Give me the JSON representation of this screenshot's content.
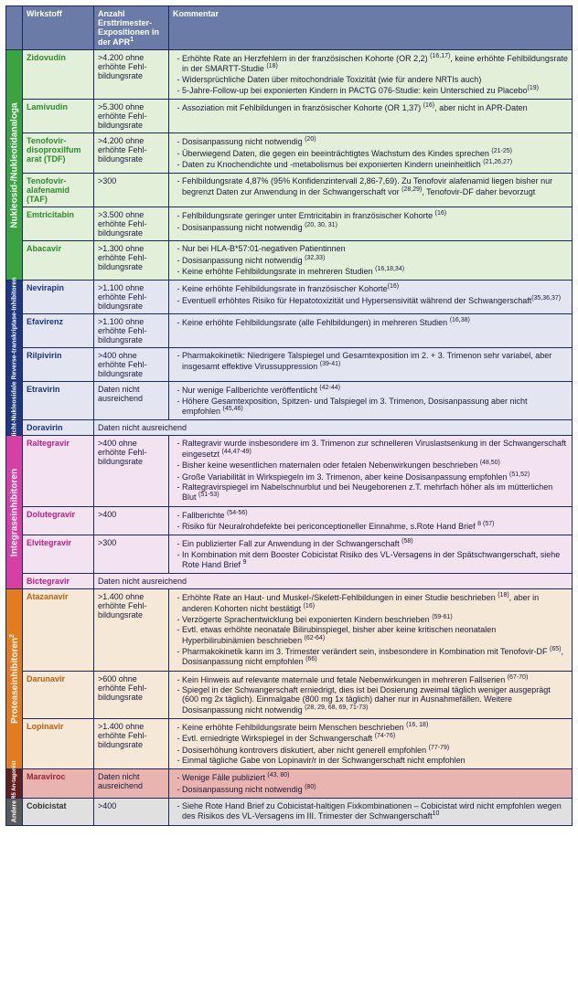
{
  "header": {
    "wirkstoff": "Wirkstoff",
    "anzahl": "Anzahl Ersttrimester-Expositionen in der APR",
    "anzahl_sup": "1",
    "kommentar": "Kommentar"
  },
  "groups": {
    "nrti": {
      "label": "Nukleosid-/Nukleotidanaloga",
      "bg": "#3aa440",
      "rowbg": "#e3f0d9",
      "wirkcolor": "#2e8b2e"
    },
    "nnrti": {
      "label": "Nicht-Nukleosidale Reverse-transkriptase-Inhibitoren",
      "bg": "#1f3680",
      "rowbg": "#e3e6f0",
      "wirkcolor": "#1f3680"
    },
    "int": {
      "label": "Integraseinhibitoren",
      "bg": "#d63fa3",
      "rowbg": "#f3e2ef",
      "wirkcolor": "#c21d84"
    },
    "prot": {
      "label": "Proteaseinhibitoren",
      "prot_sup": "2",
      "bg": "#e57b1f",
      "rowbg": "#f5e8d6",
      "wirkcolor": "#c05f0a"
    },
    "ccr5": {
      "label": "CCR5 An-tagonist",
      "bg": "#602020",
      "rowbg": "#e9b4b0",
      "wirkcolor": "#a02030"
    },
    "andere": {
      "label": "Andere",
      "bg": "#5a5a5a",
      "rowbg": "#e0e0e0",
      "wirkcolor": "#333"
    }
  },
  "rows": {
    "zidovudin": {
      "wirk": "Zidovudin",
      "anz": ">4.200 ohne erhöhte Fehl­bildungsrate",
      "items": [
        "Erhöhte Rate an Herzfehlern in der französischen Kohorte (OR 2,2) <sup>(16,17)</sup>, keine erhöhte Fehlbildungsrate in der SMARTT-Studie <sup>(18)</sup>",
        "Widersprüchliche Daten über mitochondriale Toxizität (wie für andere NRTIs auch)",
        "5-Jahre-Follow-up bei exponierten Kindern in PACTG 076-Studie: kein Unter­schied zu Placebo<sup>(19)</sup>"
      ]
    },
    "lamivudin": {
      "wirk": "Lamivudin",
      "anz": ">5.300 ohne erhöhte Fehl­bildungsrate",
      "items": [
        "Assoziation mit Fehlbildungen in französischer Kohorte (OR 1,37) <sup>(16)</sup>, aber nicht in APR-Daten"
      ]
    },
    "tdf": {
      "wirk": "Tenofovir-disoproxilfum arat (TDF)",
      "anz": ">4.200 ohne erhöhte Fehl­bildungsrate",
      "items": [
        "Dosisanpassung nicht notwendig <sup>(20)</sup>",
        "Überwiegend Daten, die gegen ein beeinträchtigtes Wachstum des Kindes sprechen <sup>(21-25)</sup>",
        "Daten zu Knochendichte und -metabolismus bei exponierten Kindern uneinheitlich <sup>(21,26,27)</sup>"
      ]
    },
    "taf": {
      "wirk": "Tenofovir-alafenamid (TAF)",
      "anz": ">300",
      "items": [
        "Fehlbildungsrate 4,87% (95% Konfidenzintervall 2,86-7,69). Zu Tenofovir alafenamid liegen bisher nur begrenzt Daten zur Anwendung in der Schwan­gerschaft vor <sup>(28,29)</sup>, Tenofovir-DF daher bevorzugt"
      ]
    },
    "emtri": {
      "wirk": "Emtricitabin",
      "anz": ">3.500 ohne erhöhte Fehl­bildungsrate",
      "items": [
        "Fehlbildungsrate geringer unter Emtricitabin in französischer Kohorte <sup>(16)</sup>",
        "Dosisanpassung nicht notwendig <sup>(20, 30, 31)</sup>"
      ]
    },
    "abacavir": {
      "wirk": "Abacavir",
      "anz": ">1.300 ohne erhöhte Fehl­bildungsrate",
      "items": [
        "Nur bei HLA-B*57:01-negativen Patientinnen",
        "Dosisanpassung nicht notwendig <sup>(32,33)</sup>",
        "Keine erhöhte Fehlbildungsrate in mehreren Studien <sup>(16,18,34)</sup>"
      ]
    },
    "nevirapin": {
      "wirk": "Nevirapin",
      "anz": ">1.100 ohne erhöhte Fehl­bildungsrate",
      "items": [
        "Keine erhöhte Fehlbildungsrate in französischer Kohorte<sup>(16)</sup>",
        "Eventuell erhöhtes Risiko für Hepatotoxizität und Hypersensivität während der Schwangerschaft<sup>(35,36,37)</sup>"
      ]
    },
    "efavirenz": {
      "wirk": "Efavirenz",
      "anz": ">1.100 ohne erhöhte Fehl­bildungsrate",
      "items": [
        "Keine erhöhte Fehlbildungsrate (alle Fehlbildungen) in mehreren Studien <sup>(16,38)</sup>"
      ]
    },
    "rilpivirin": {
      "wirk": "Rilpivirin",
      "anz": ">400 ohne erhöhte Fehl­bildungsrate",
      "items": [
        "Pharmakokinetik: Niedrigere Talspiegel und Gesamtexposition im 2. + 3. Trimenon sehr variabel, aber insgesamt effektive Virussuppression <sup>(39-41)</sup>"
      ]
    },
    "etravirin": {
      "wirk": "Etravirin",
      "anz": "Daten nicht ausreichend",
      "items": [
        "Nur wenige Fallberichte veröffentlicht <sup>(42-44)</sup>",
        "Höhere Gesamtexposition, Spitzen- und Talspiegel im 3. Trimenon, Dosis­anpassung aber nicht empfohlen <sup>(45,46)</sup>"
      ]
    },
    "doravirin": {
      "wirk": "Doravirin",
      "span_text": "Daten nicht ausreichend"
    },
    "raltegravir": {
      "wirk": "Raltegravir",
      "anz": ">400 ohne erhöhte Fehl­bildungsrate",
      "items": [
        "Raltegravir wurde insbesondere im 3. Trimenon zur schnelleren Viruslastsen­kung in der Schwangerschaft eingesetzt <sup>(44,47-49)</sup>",
        "Bisher keine wesentlichen maternalen oder fetalen Nebenwirkungen beschrieben <sup>(48,50)</sup>",
        "Große Variabilität in Wirkspiegeln im 3. Trimenon, aber keine Dosisanpas­sung empfohlen <sup>(51,52)</sup>",
        "Raltegravirspiegel im Nabelschnurblut und bei Neugeborenen z.T. mehrfach höher als im mütterlichen Blut <sup>(51-53)</sup>"
      ]
    },
    "dolutegravir": {
      "wirk": "Dolutegravir",
      "anz": ">400",
      "items": [
        "Fallberichte <sup>(54-56)</sup>",
        "Risiko für Neuralrohdefekte bei periconceptioneller Einnahme, s.Rote Hand Brief <sup>8 (57)</sup>"
      ]
    },
    "elvitegravir": {
      "wirk": "Elvitegravir",
      "anz": ">300",
      "items": [
        "Ein publizierter Fall zur Anwendung in der Schwangerschaft <sup>(58)</sup>",
        "In Kombination mit dem Booster Cobicistat Risiko des VL-Versagens in der Spätschwangerschaft, siehe Rote Hand Brief <sup>9</sup>"
      ]
    },
    "bictegravir": {
      "wirk": "Bictegravir",
      "span_text": "Daten nicht ausreichend"
    },
    "atazanavir": {
      "wirk": "Atazanavir",
      "anz": ">1.400 ohne erhöhte Fehl­bildungsrate",
      "items": [
        "Erhöhte Rate an Haut- und Muskel-/Skelett-Fehlbildungen in einer Studie beschrieben <sup>(18)</sup>, aber in anderen Kohorten nicht bestätigt <sup>(16)</sup>",
        "Verzögerte Sprachentwicklung bei exponierten Kindern beschrieben <sup>(59-61)</sup>",
        "Evtl. etwas erhöhte neonatale Bilirubinspiegel, bisher aber keine kritischen neonatalen Hyperbilirubinämien beschrieben <sup>(62-64)</sup>",
        "Pharmakokinetik kann im 3. Trimester verändert sein, insbesondere in Kombination mit Tenofovir-DF <sup>(65)</sup>, Dosisanpassung nicht empfohlen <sup>(66)</sup>"
      ]
    },
    "darunavir": {
      "wirk": "Darunavir",
      "anz": ">600 ohne erhöhte Fehl­bildungsrate",
      "items": [
        "Kein Hinweis auf relevante maternale und fetale Nebenwirkungen in mehreren Fallserien <sup>(67-70)</sup>",
        "Spiegel in der Schwangerschaft erniedrigt, dies ist bei Dosierung zweimal täglich weniger ausgeprägt (600 mg 2x täglich). Einmalgabe (800 mg 1x täglich) daher nur in Ausnahmefällen. Weitere Dosisanpassung nicht not­wendig <sup>(28, 29, 68, 69, 71-73)</sup>"
      ]
    },
    "lopinavir": {
      "wirk": "Lopinavir",
      "anz": ">1.400 ohne erhöhte Fehl­bildungsrate",
      "items": [
        "Keine erhöhte Fehlbildungsrate beim Menschen beschrieben <sup>(16, 18)</sup>",
        "Evtl. erniedrigte Wirkspiegel in der Schwangerschaft <sup>(74-76)</sup>",
        "Dosiserhöhung kontrovers diskutiert, aber nicht generell empfohlen <sup>(77-79)</sup>",
        "Einmal tägliche Gabe von Lopinavir/r in der Schwangerschaft nicht empfohlen"
      ]
    },
    "maraviroc": {
      "wirk": "Maraviroc",
      "anz": "Daten nicht ausreichend",
      "items": [
        "Wenige Fälle publiziert <sup>(43, 80)</sup>",
        "Dosisanpassung nicht notwendig <sup>(80)</sup>"
      ]
    },
    "cobicistat": {
      "wirk": "Cobicistat",
      "anz": ">400",
      "items": [
        "Siehe Rote Hand Brief zu Cobicistat-haltigen Fixkombinationen – Cobicistat wird nicht empfohlen wegen des Risikos des VL-Versagens im III. Trimester der Schwangerschaft<sup>10</sup>"
      ]
    }
  }
}
